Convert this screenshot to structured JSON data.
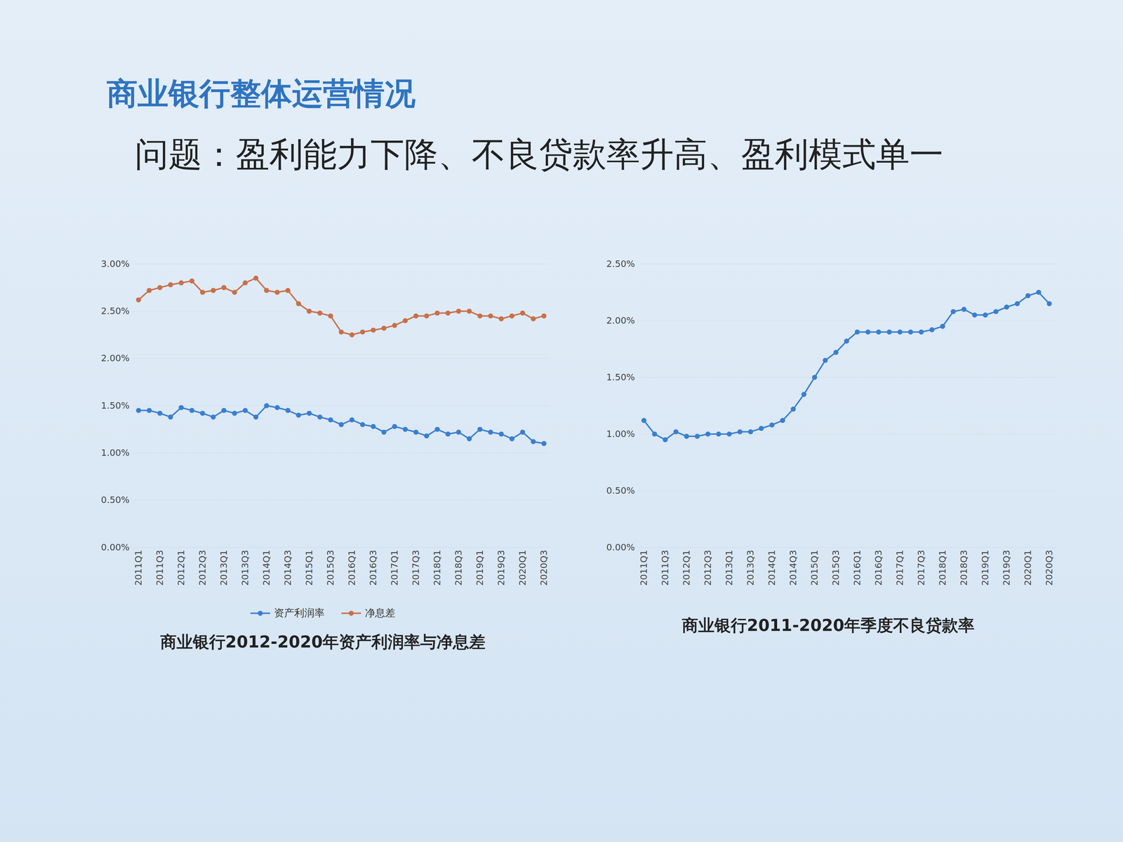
{
  "slide": {
    "title": "商业银行整体运营情况",
    "subtitle": "问题：盈利能力下降、不良贷款率升高、盈利模式单一"
  },
  "chart_data": [
    {
      "type": "line",
      "title": "商业银行2012-2020年资产利润率与净息差",
      "categories": [
        "2011Q1",
        null,
        "2011Q3",
        null,
        "2012Q1",
        null,
        "2012Q3",
        null,
        "2013Q1",
        null,
        "2013Q3",
        null,
        "2014Q1",
        null,
        "2014Q3",
        null,
        "2015Q1",
        null,
        "2015Q3",
        null,
        "2016Q1",
        null,
        "2016Q3",
        null,
        "2017Q1",
        null,
        "2017Q3",
        null,
        "2018Q1",
        null,
        "2018Q3",
        null,
        "2019Q1",
        null,
        "2019Q3",
        null,
        "2020Q1",
        null,
        "2020Q3"
      ],
      "series": [
        {
          "name": "资产利润率",
          "color": "#3a7fd0",
          "marker": "circle",
          "line_style": "solid",
          "values": [
            1.45,
            1.45,
            1.42,
            1.38,
            1.48,
            1.45,
            1.42,
            1.38,
            1.45,
            1.42,
            1.45,
            1.38,
            1.5,
            1.48,
            1.45,
            1.4,
            1.42,
            1.38,
            1.35,
            1.3,
            1.35,
            1.3,
            1.28,
            1.22,
            1.28,
            1.25,
            1.22,
            1.18,
            1.25,
            1.2,
            1.22,
            1.15,
            1.25,
            1.22,
            1.2,
            1.15,
            1.22,
            1.12,
            1.1
          ]
        },
        {
          "name": "净息差",
          "color": "#c8704a",
          "marker": "circle",
          "line_style": "solid",
          "values": [
            2.62,
            2.72,
            2.75,
            2.78,
            2.8,
            2.82,
            2.7,
            2.72,
            2.75,
            2.7,
            2.8,
            2.85,
            2.72,
            2.7,
            2.72,
            2.58,
            2.5,
            2.48,
            2.45,
            2.28,
            2.25,
            2.28,
            2.3,
            2.32,
            2.35,
            2.4,
            2.45,
            2.45,
            2.48,
            2.48,
            2.5,
            2.5,
            2.45,
            2.45,
            2.42,
            2.45,
            2.48,
            2.42,
            2.45
          ]
        }
      ],
      "ylim": [
        0,
        3
      ],
      "yticks": [
        {
          "value": 0,
          "label": "0.00%"
        },
        {
          "value": 0.5,
          "label": "0.50%"
        },
        {
          "value": 1,
          "label": "1.00%"
        },
        {
          "value": 1.5,
          "label": "1.50%"
        },
        {
          "value": 2,
          "label": "2.00%"
        },
        {
          "value": 2.5,
          "label": "2.50%"
        },
        {
          "value": 3,
          "label": "3.00%"
        }
      ],
      "grid": true,
      "legend": "bottom"
    },
    {
      "type": "line",
      "title": "商业银行2011-2020年季度不良贷款率",
      "categories": [
        "2011Q1",
        null,
        "2011Q3",
        null,
        "2012Q1",
        null,
        "2012Q3",
        null,
        "2013Q1",
        null,
        "2013Q3",
        null,
        "2014Q1",
        null,
        "2014Q3",
        null,
        "2015Q1",
        null,
        "2015Q3",
        null,
        "2016Q1",
        null,
        "2016Q3",
        null,
        "2017Q1",
        null,
        "2017Q3",
        null,
        "2018Q1",
        null,
        "2018Q3",
        null,
        "2019Q1",
        null,
        "2019Q3",
        null,
        "2020Q1",
        null,
        "2020Q3"
      ],
      "series": [
        {
          "color": "#3a7fd0",
          "marker": "circle",
          "line_style": "solid",
          "values": [
            1.12,
            1.0,
            0.95,
            1.02,
            0.98,
            0.98,
            1.0,
            1.0,
            1.0,
            1.02,
            1.02,
            1.05,
            1.08,
            1.12,
            1.22,
            1.35,
            1.5,
            1.65,
            1.72,
            1.82,
            1.9,
            1.9,
            1.9,
            1.9,
            1.9,
            1.9,
            1.9,
            1.92,
            1.95,
            2.08,
            2.1,
            2.05,
            2.05,
            2.08,
            2.12,
            2.15,
            2.22,
            2.25,
            2.15
          ]
        }
      ],
      "ylim": [
        0,
        2.5
      ],
      "yticks": [
        {
          "value": 0,
          "label": "0.00%"
        },
        {
          "value": 0.5,
          "label": "0.50%"
        },
        {
          "value": 1,
          "label": "1.00%"
        },
        {
          "value": 1.5,
          "label": "1.50%"
        },
        {
          "value": 2,
          "label": "2.00%"
        },
        {
          "value": 2.5,
          "label": "2.50%"
        }
      ],
      "grid": true
    }
  ]
}
